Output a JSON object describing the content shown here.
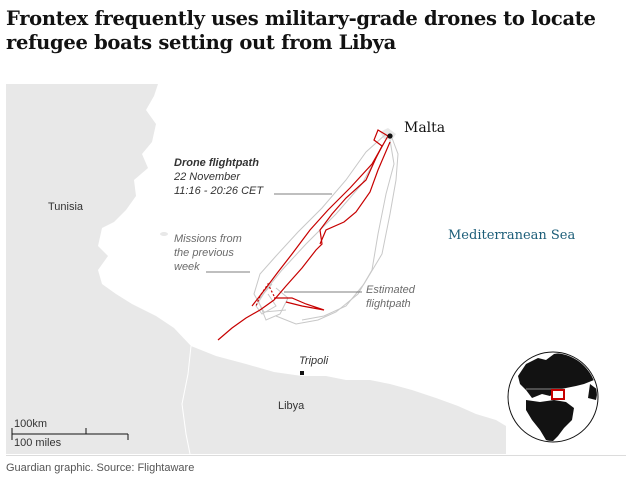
{
  "title": "Frontex frequently uses military-grade drones to locate refugee boats setting out from Libya",
  "labels": {
    "malta": "Malta",
    "tunisia": "Tunisia",
    "libya": "Libya",
    "tripoli": "Tripoli",
    "sea": "Mediterranean Sea"
  },
  "annotations": {
    "drone_title": "Drone flightpath",
    "drone_date": "22 November",
    "drone_time": "11:16 - 20:26 CET",
    "missions_line1": "Missions from",
    "missions_line2": "the previous",
    "missions_line3": "week",
    "estimated_line1": "Estimated",
    "estimated_line2": "flightpath"
  },
  "scale": {
    "km": "100km",
    "miles": "100 miles"
  },
  "source": "Guardian graphic. Source: Flightaware",
  "colors": {
    "land": "#e8e8e8",
    "sea": "#ffffff",
    "flightpath": "#c70000",
    "missions": "#c8c8c8",
    "sea_label": "#1b5d78"
  }
}
